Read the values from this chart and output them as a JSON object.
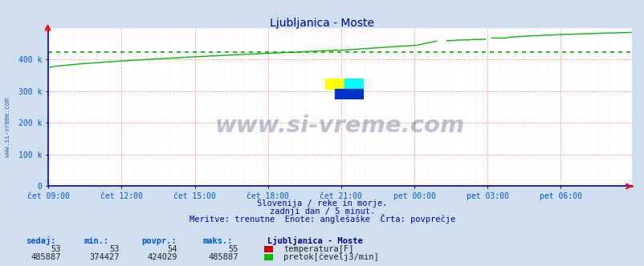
{
  "title": "Ljubljanica - Moste",
  "title_color": "#000099",
  "bg_color": "#d0dff0",
  "plot_bg_color": "#ffffff",
  "grid_color_major": "#ffaaaa",
  "grid_color_minor": "#ffdddd",
  "spine_color": "#0000cc",
  "label_color": "#0055cc",
  "ylabel_ticks": [
    0,
    100000,
    200000,
    300000,
    400000
  ],
  "ylabel_labels": [
    "0",
    "100 k",
    "200 k",
    "300 k",
    "400 k"
  ],
  "ymax": 500000,
  "xtick_labels": [
    "čet 09:00",
    "čet 12:00",
    "čet 15:00",
    "čet 18:00",
    "čet 21:00",
    "pet 00:00",
    "pet 03:00",
    "pet 06:00"
  ],
  "xtick_positions": [
    0,
    36,
    72,
    108,
    144,
    180,
    216,
    252
  ],
  "n_points": 288,
  "temp_value": 53,
  "temp_min": 53,
  "temp_avg": 54,
  "temp_max": 55,
  "flow_sedaj": 485887,
  "flow_min": 374427,
  "flow_avg": 424029,
  "flow_max": 485887,
  "temp_color": "#cc0000",
  "flow_color": "#00bb00",
  "avg_line_color": "#00aa00",
  "watermark_text": "www.si-vreme.com",
  "watermark_color": "#1a3a6a",
  "watermark_alpha": 0.3,
  "subtitle1": "Slovenija / reke in morje.",
  "subtitle2": "zadnji dan / 5 minut.",
  "subtitle3": "Meritve: trenutne  Enote: anglešaške  Črta: povprečje",
  "subtitle_color": "#0000aa",
  "legend_title": "Ljubljanica - Moste",
  "legend_title_color": "#000080",
  "left_label": "www.si-vreme.com",
  "left_label_color": "#3366aa"
}
